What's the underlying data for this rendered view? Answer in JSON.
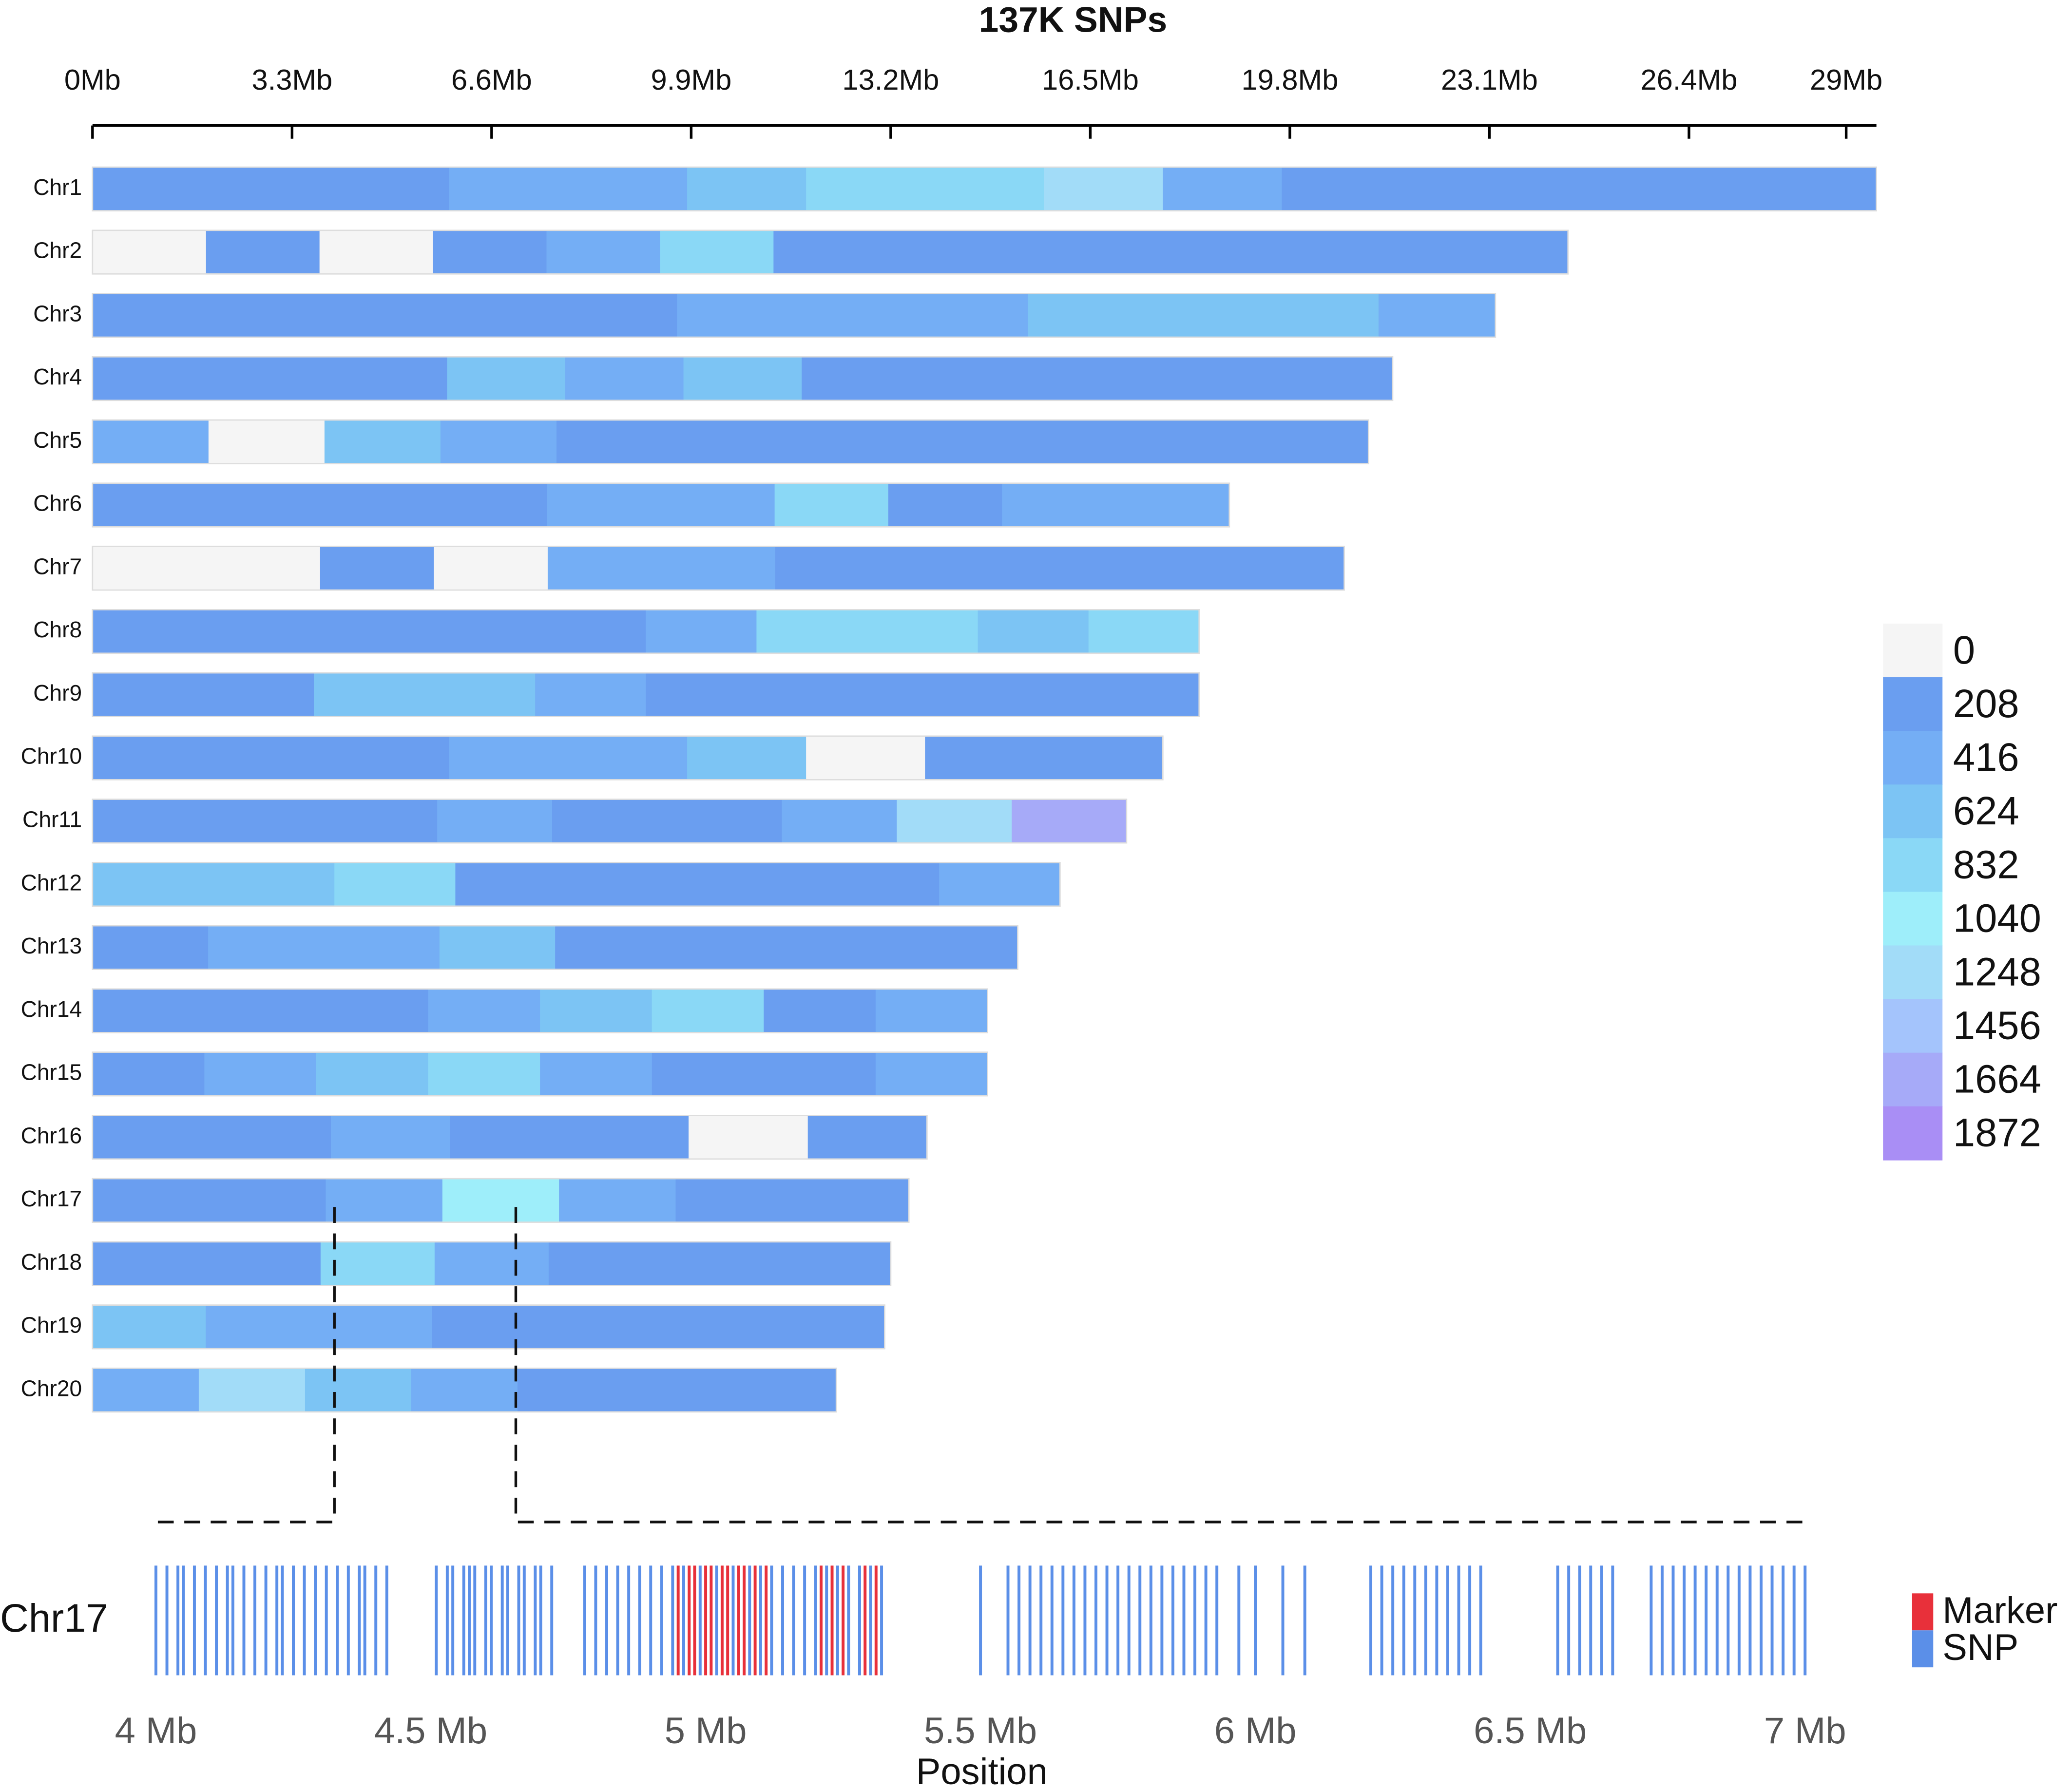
{
  "chart_data": [
    {
      "type": "heatmap",
      "title": "137K SNPs",
      "xlim": [
        0,
        29.5
      ],
      "xticks": [
        {
          "value": 0,
          "label": "0Mb"
        },
        {
          "value": 3.3,
          "label": "3.3Mb"
        },
        {
          "value": 6.6,
          "label": "6.6Mb"
        },
        {
          "value": 9.9,
          "label": "9.9Mb"
        },
        {
          "value": 13.2,
          "label": "13.2Mb"
        },
        {
          "value": 16.5,
          "label": "16.5Mb"
        },
        {
          "value": 19.8,
          "label": "19.8Mb"
        },
        {
          "value": 23.1,
          "label": "23.1Mb"
        },
        {
          "value": 26.4,
          "label": "26.4Mb"
        },
        {
          "value": 29,
          "label": "29Mb"
        }
      ],
      "colorbar": {
        "ticks": [
          0,
          208,
          416,
          624,
          832,
          1040,
          1248,
          1456,
          1664,
          1872
        ],
        "colors": [
          "#f5f5f5",
          "#6a9ef0",
          "#74aef5",
          "#7cc4f4",
          "#8ad8f6",
          "#9eeefa",
          "#a2dcf8",
          "#a4c4fc",
          "#a6aaf8",
          "#a98ef5"
        ]
      },
      "series": [
        {
          "name": "Chr1",
          "length": 29.5,
          "values": [
            350,
            300,
            400,
            500,
            450,
            700,
            900,
            1000,
            1300,
            600,
            350,
            400,
            350,
            300,
            400
          ]
        },
        {
          "name": "Chr2",
          "length": 24.4,
          "values": [
            100,
            300,
            100,
            300,
            500,
            900,
            400,
            300,
            250,
            300,
            350,
            400,
            250
          ]
        },
        {
          "name": "Chr3",
          "length": 23.2,
          "values": [
            300,
            280,
            250,
            300,
            400,
            550,
            600,
            450,
            800,
            650,
            700,
            450
          ]
        },
        {
          "name": "Chr4",
          "length": 21.5,
          "values": [
            400,
            350,
            400,
            700,
            600,
            700,
            400,
            350,
            400,
            350,
            300
          ]
        },
        {
          "name": "Chr5",
          "length": 21.1,
          "values": [
            500,
            100,
            800,
            600,
            350,
            300,
            300,
            280,
            300,
            350,
            300
          ]
        },
        {
          "name": "Chr6",
          "length": 18.8,
          "values": [
            300,
            280,
            300,
            350,
            500,
            600,
            900,
            400,
            500,
            550
          ]
        },
        {
          "name": "Chr7",
          "length": 20.7,
          "values": [
            200,
            100,
            400,
            100,
            500,
            600,
            400,
            350,
            300,
            350,
            300
          ]
        },
        {
          "name": "Chr8",
          "length": 18.3,
          "values": [
            300,
            250,
            280,
            300,
            350,
            600,
            950,
            900,
            800,
            950
          ]
        },
        {
          "name": "Chr9",
          "length": 18.3,
          "values": [
            350,
            400,
            700,
            800,
            500,
            300,
            350,
            350,
            400,
            350
          ]
        },
        {
          "name": "Chr10",
          "length": 17.7,
          "values": [
            300,
            350,
            400,
            450,
            450,
            700,
            100,
            300,
            350
          ]
        },
        {
          "name": "Chr11",
          "length": 17.1,
          "values": [
            300,
            350,
            400,
            450,
            400,
            350,
            500,
            1400,
            1800
          ]
        },
        {
          "name": "Chr12",
          "length": 16.0,
          "values": [
            800,
            700,
            900,
            400,
            300,
            300,
            250,
            500
          ]
        },
        {
          "name": "Chr13",
          "length": 15.3,
          "values": [
            400,
            450,
            600,
            700,
            400,
            350,
            300,
            300
          ]
        },
        {
          "name": "Chr14",
          "length": 14.8,
          "values": [
            400,
            350,
            300,
            500,
            700,
            900,
            300,
            450
          ]
        },
        {
          "name": "Chr15",
          "length": 14.8,
          "values": [
            350,
            500,
            700,
            900,
            500,
            400,
            350,
            450
          ]
        },
        {
          "name": "Chr16",
          "length": 13.8,
          "values": [
            350,
            400,
            500,
            400,
            300,
            150,
            350
          ]
        },
        {
          "name": "Chr17",
          "length": 13.5,
          "values": [
            300,
            350,
            600,
            1200,
            600,
            400,
            350
          ]
        },
        {
          "name": "Chr18",
          "length": 13.2,
          "values": [
            300,
            400,
            1000,
            600,
            350,
            300,
            350
          ]
        },
        {
          "name": "Chr19",
          "length": 13.1,
          "values": [
            700,
            550,
            450,
            350,
            300,
            280,
            300
          ]
        },
        {
          "name": "Chr20",
          "length": 12.3,
          "values": [
            450,
            1300,
            700,
            600,
            400,
            300,
            250
          ]
        }
      ]
    },
    {
      "type": "strip",
      "ylabel": "Chr17",
      "xlabel": "Position",
      "xlim": [
        4,
        7
      ],
      "xticks": [
        {
          "value": 4,
          "label": "4 Mb"
        },
        {
          "value": 4.5,
          "label": "4.5 Mb"
        },
        {
          "value": 5,
          "label": "5 Mb"
        },
        {
          "value": 5.5,
          "label": "5.5 Mb"
        },
        {
          "value": 6,
          "label": "6 Mb"
        },
        {
          "value": 6.5,
          "label": "6.5 Mb"
        },
        {
          "value": 7,
          "label": "7 Mb"
        }
      ],
      "series": [
        {
          "name": "Marker",
          "color": "#e8303a",
          "positions": [
            4.95,
            4.97,
            4.98,
            5.0,
            5.01,
            5.03,
            5.04,
            5.06,
            5.07,
            5.09,
            5.11,
            5.21,
            5.23,
            5.25,
            5.29,
            5.31
          ]
        },
        {
          "name": "SNP",
          "color": "#5b8fe8",
          "positions": [
            4.0,
            4.02,
            4.04,
            4.05,
            4.07,
            4.09,
            4.11,
            4.13,
            4.14,
            4.16,
            4.18,
            4.2,
            4.22,
            4.23,
            4.25,
            4.27,
            4.29,
            4.31,
            4.33,
            4.35,
            4.37,
            4.38,
            4.4,
            4.42,
            4.51,
            4.53,
            4.54,
            4.56,
            4.57,
            4.58,
            4.6,
            4.61,
            4.63,
            4.64,
            4.66,
            4.67,
            4.69,
            4.7,
            4.72,
            4.78,
            4.8,
            4.82,
            4.84,
            4.86,
            4.88,
            4.9,
            4.92,
            4.94,
            4.96,
            4.99,
            5.02,
            5.05,
            5.08,
            5.1,
            5.12,
            5.14,
            5.16,
            5.18,
            5.2,
            5.22,
            5.24,
            5.26,
            5.28,
            5.3,
            5.32,
            5.5,
            5.55,
            5.57,
            5.59,
            5.61,
            5.63,
            5.65,
            5.67,
            5.69,
            5.71,
            5.73,
            5.75,
            5.77,
            5.79,
            5.81,
            5.83,
            5.85,
            5.87,
            5.89,
            5.91,
            5.93,
            5.97,
            6.0,
            6.05,
            6.09,
            6.21,
            6.23,
            6.25,
            6.27,
            6.29,
            6.31,
            6.33,
            6.35,
            6.37,
            6.39,
            6.41,
            6.55,
            6.57,
            6.59,
            6.61,
            6.63,
            6.65,
            6.72,
            6.74,
            6.76,
            6.78,
            6.8,
            6.82,
            6.84,
            6.86,
            6.88,
            6.9,
            6.92,
            6.94,
            6.96,
            6.98,
            7.0
          ]
        }
      ]
    }
  ]
}
